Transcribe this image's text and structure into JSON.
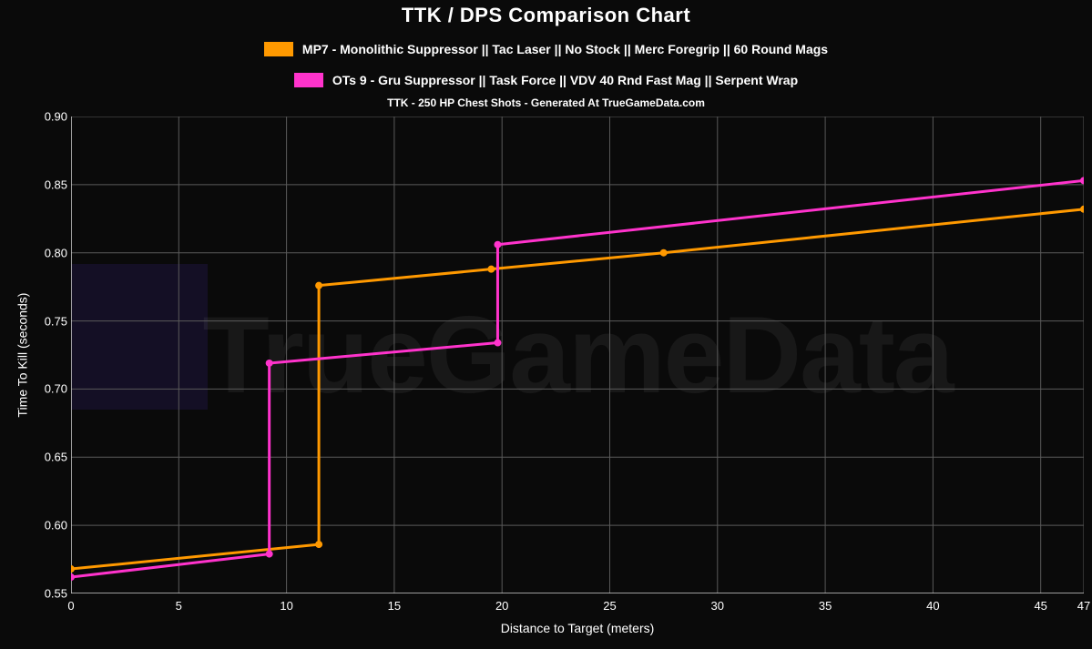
{
  "chart": {
    "type": "line-step",
    "title": "TTK / DPS Comparison Chart",
    "subtitle": "TTK - 250 HP Chest Shots - Generated At TrueGameData.com",
    "xlabel": "Distance to Target (meters)",
    "ylabel": "Time To Kill (seconds)",
    "background_color": "#0a0a0a",
    "grid_color": "#5a5a5a",
    "axis_color": "#cccccc",
    "text_color": "#ffffff",
    "title_fontsize": 22,
    "label_fontsize": 14,
    "tick_fontsize": 13,
    "legend_fontsize": 14,
    "line_width": 3,
    "marker_radius": 4,
    "watermark_text": "TrueGameData",
    "xlim": [
      0,
      47
    ],
    "ylim": [
      0.55,
      0.9
    ],
    "xticks": [
      0,
      5,
      10,
      15,
      20,
      25,
      30,
      35,
      40,
      45,
      47
    ],
    "yticks": [
      0.55,
      0.6,
      0.65,
      0.7,
      0.75,
      0.8,
      0.85,
      0.9
    ],
    "legend": [
      {
        "label": "MP7 - Monolithic Suppressor || Tac Laser || No Stock || Merc Foregrip || 60 Round Mags",
        "color": "#ff9900"
      },
      {
        "label": "OTs 9 - Gru Suppressor || Task Force || VDV 40 Rnd Fast Mag || Serpent Wrap",
        "color": "#ff33cc"
      }
    ],
    "series": [
      {
        "name": "MP7",
        "color": "#ff9900",
        "markers": [
          [
            0,
            0.568
          ],
          [
            11.5,
            0.586
          ],
          [
            11.5,
            0.776
          ],
          [
            19.5,
            0.788
          ],
          [
            27.5,
            0.8
          ],
          [
            47,
            0.832
          ]
        ],
        "path": [
          [
            0,
            0.568
          ],
          [
            11.5,
            0.586
          ],
          [
            11.5,
            0.776
          ],
          [
            19.5,
            0.788
          ],
          [
            27.5,
            0.8
          ],
          [
            47,
            0.832
          ]
        ]
      },
      {
        "name": "OTs9",
        "color": "#ff33cc",
        "markers": [
          [
            0,
            0.562
          ],
          [
            9.2,
            0.579
          ],
          [
            9.2,
            0.719
          ],
          [
            19.8,
            0.734
          ],
          [
            19.8,
            0.806
          ],
          [
            47,
            0.853
          ]
        ],
        "path": [
          [
            0,
            0.562
          ],
          [
            9.2,
            0.579
          ],
          [
            9.2,
            0.719
          ],
          [
            19.8,
            0.734
          ],
          [
            19.8,
            0.806
          ],
          [
            47,
            0.853
          ]
        ]
      }
    ]
  }
}
